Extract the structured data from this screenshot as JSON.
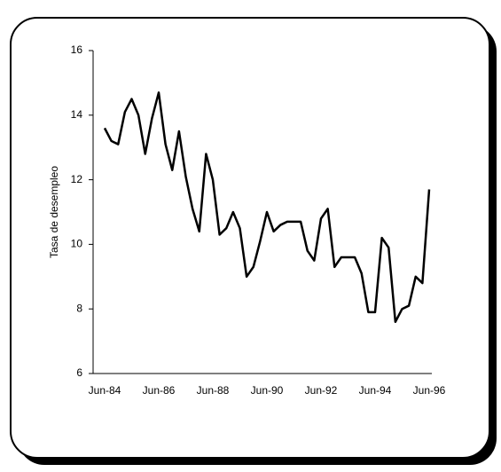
{
  "chart_data": {
    "type": "line",
    "ylabel": "Tasa de desempleo",
    "categories": [
      "Jun-84",
      null,
      null,
      null,
      null,
      null,
      null,
      null,
      "Jun-86",
      null,
      null,
      null,
      null,
      null,
      null,
      null,
      "Jun-88",
      null,
      null,
      null,
      null,
      null,
      null,
      null,
      "Jun-90",
      null,
      null,
      null,
      null,
      null,
      null,
      null,
      "Jun-92",
      null,
      null,
      null,
      null,
      null,
      null,
      null,
      "Jun-94",
      null,
      null,
      null,
      null,
      null,
      null,
      null,
      "Jun-96"
    ],
    "series": [
      {
        "color": "#000000",
        "values": [
          13.6,
          13.2,
          13.1,
          14.1,
          14.5,
          14.0,
          12.8,
          13.9,
          14.7,
          13.1,
          12.3,
          13.5,
          12.1,
          11.1,
          10.4,
          12.8,
          12.0,
          10.3,
          10.5,
          11.0,
          10.5,
          9.0,
          9.3,
          10.1,
          11.0,
          10.4,
          10.6,
          10.7,
          10.7,
          10.7,
          9.8,
          9.5,
          10.8,
          11.1,
          9.3,
          9.6,
          9.6,
          9.6,
          9.1,
          7.9,
          7.9,
          10.2,
          9.9,
          7.6,
          8.0,
          8.1,
          9.0,
          8.8,
          11.7
        ]
      }
    ],
    "ylim": [
      6,
      16
    ],
    "yticks": [
      6,
      8,
      10,
      12,
      14,
      16
    ]
  }
}
